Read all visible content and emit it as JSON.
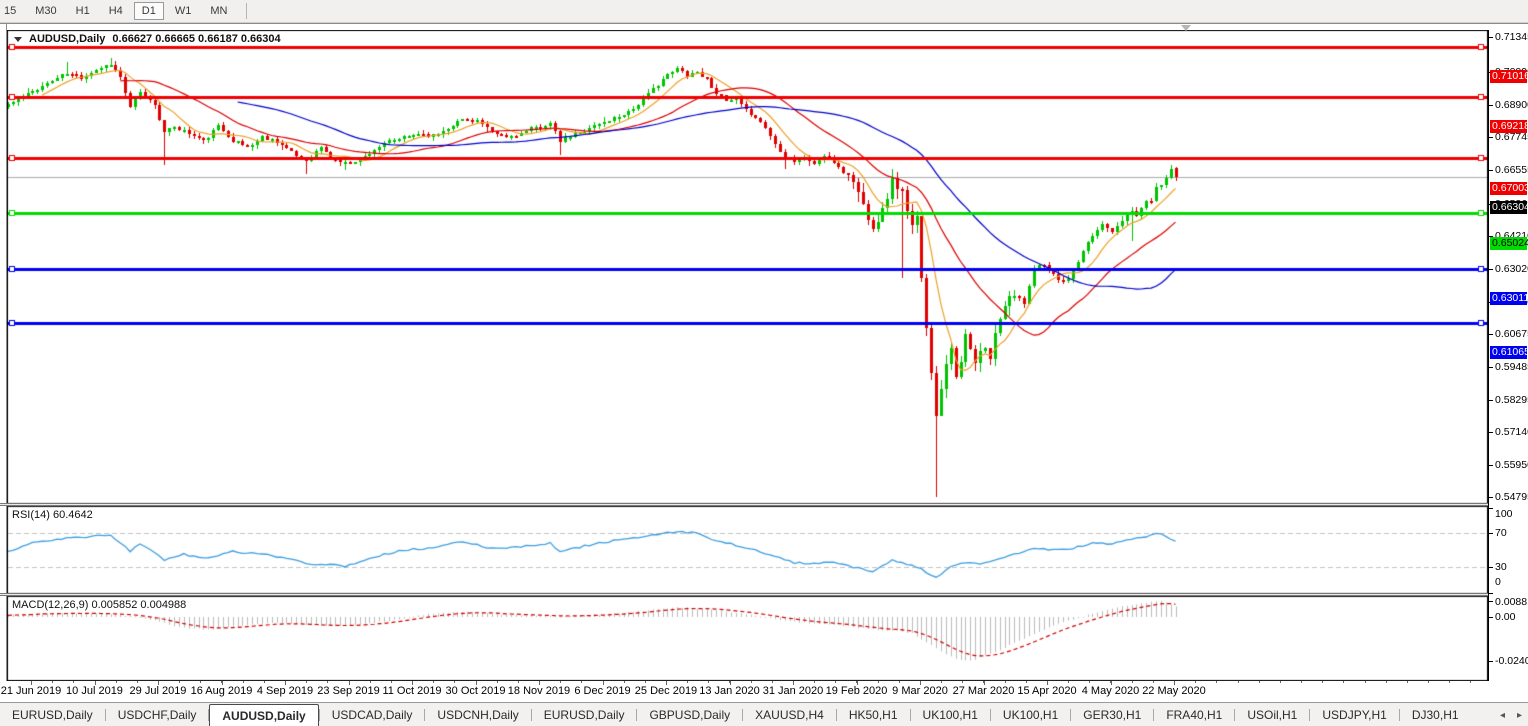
{
  "toolbar": {
    "buttons": [
      "15",
      "M30",
      "H1",
      "H4",
      "D1",
      "W1",
      "MN"
    ],
    "active": "D1"
  },
  "header": {
    "symbol": "AUDUSD,Daily",
    "ohlc": "0.66627 0.66665 0.66187 0.66304"
  },
  "indicators": {
    "rsi_label": "RSI(14) 60.4642",
    "macd_label": "MACD(12,26,9) 0.005852 0.004988"
  },
  "axis": {
    "price_ticks": [
      "0.71345",
      "0.70090",
      "0.68900",
      "0.67745",
      "0.66555",
      "0.65365",
      "0.64210",
      "0.63020",
      "0.61830",
      "0.60675",
      "0.59485",
      "0.58295",
      "0.57140",
      "0.55950",
      "0.54795"
    ],
    "rsi_ticks": [
      "100",
      "70",
      "30",
      "0"
    ],
    "macd_ticks": [
      "0.008815",
      "0.00",
      "-0.02408"
    ],
    "dates": [
      "21 Jun 2019",
      "10 Jul 2019",
      "29 Jul 2019",
      "16 Aug 2019",
      "4 Sep 2019",
      "23 Sep 2019",
      "11 Oct 2019",
      "30 Oct 2019",
      "18 Nov 2019",
      "6 Dec 2019",
      "25 Dec 2019",
      "13 Jan 2020",
      "31 Jan 2020",
      "19 Feb 2020",
      "9 Mar 2020",
      "27 Mar 2020",
      "15 Apr 2020",
      "4 May 2020",
      "22 May 2020"
    ]
  },
  "tabs": {
    "items": [
      "EURUSD,Daily",
      "USDCHF,Daily",
      "AUDUSD,Daily",
      "USDCAD,Daily",
      "USDCNH,Daily",
      "EURUSD,Daily",
      "GBPUSD,Daily",
      "XAUUSD,H4",
      "HK50,H1",
      "UK100,H1",
      "UK100,H1",
      "GER30,H1",
      "FRA40,H1",
      "USOil,H1",
      "USDJPY,H1",
      "DJ30,H1"
    ],
    "active_index": 2,
    "nav_left": "◂",
    "nav_right": "▸"
  },
  "colors": {
    "bull": "#00C400",
    "bear": "#E00000",
    "ma_fast": "#EDA128",
    "ma_mid": "#DC0000",
    "ma_slow": "#0000C8",
    "level_red": "#F00000",
    "level_green": "#00DC00",
    "level_blue": "#0000F0",
    "current_line": "#ababab",
    "current_box": "#000000",
    "rsi_line": "#3E9EE0",
    "rsi_levels": "#c4c4c4",
    "macd_bars": "#bcbcbc",
    "macd_signal": "#D00000"
  },
  "chart_data": {
    "type": "candlestick",
    "symbol": "AUDUSD",
    "timeframe": "Daily",
    "title": "AUDUSD,Daily",
    "last_ohlc": {
      "open": 0.66627,
      "high": 0.66665,
      "low": 0.66187,
      "close": 0.66304
    },
    "num_candles": 240,
    "x_dates": [
      "21 Jun 2019",
      "10 Jul 2019",
      "29 Jul 2019",
      "16 Aug 2019",
      "4 Sep 2019",
      "23 Sep 2019",
      "11 Oct 2019",
      "30 Oct 2019",
      "18 Nov 2019",
      "6 Dec 2019",
      "25 Dec 2019",
      "13 Jan 2020",
      "31 Jan 2020",
      "19 Feb 2020",
      "9 Mar 2020",
      "27 Mar 2020",
      "15 Apr 2020",
      "4 May 2020",
      "22 May 2020"
    ],
    "y_axis_range": [
      0.5457,
      0.7158
    ],
    "grid": false,
    "close_anchors": [
      [
        0,
        0.6895
      ],
      [
        3,
        0.692
      ],
      [
        6,
        0.695
      ],
      [
        9,
        0.698
      ],
      [
        12,
        0.7005
      ],
      [
        15,
        0.699
      ],
      [
        18,
        0.702
      ],
      [
        21,
        0.704
      ],
      [
        23,
        0.699
      ],
      [
        25,
        0.688
      ],
      [
        27,
        0.6935
      ],
      [
        30,
        0.6895
      ],
      [
        32,
        0.679
      ],
      [
        34,
        0.6815
      ],
      [
        37,
        0.679
      ],
      [
        40,
        0.676
      ],
      [
        43,
        0.6815
      ],
      [
        46,
        0.6765
      ],
      [
        49,
        0.674
      ],
      [
        52,
        0.6775
      ],
      [
        55,
        0.676
      ],
      [
        58,
        0.672
      ],
      [
        61,
        0.669
      ],
      [
        64,
        0.674
      ],
      [
        66,
        0.67
      ],
      [
        69,
        0.668
      ],
      [
        72,
        0.6695
      ],
      [
        75,
        0.673
      ],
      [
        78,
        0.676
      ],
      [
        81,
        0.6775
      ],
      [
        84,
        0.679
      ],
      [
        87,
        0.678
      ],
      [
        90,
        0.681
      ],
      [
        93,
        0.684
      ],
      [
        96,
        0.6835
      ],
      [
        99,
        0.679
      ],
      [
        102,
        0.6775
      ],
      [
        105,
        0.679
      ],
      [
        108,
        0.681
      ],
      [
        111,
        0.6825
      ],
      [
        113,
        0.676
      ],
      [
        116,
        0.6785
      ],
      [
        119,
        0.681
      ],
      [
        122,
        0.683
      ],
      [
        125,
        0.685
      ],
      [
        128,
        0.688
      ],
      [
        131,
        0.693
      ],
      [
        134,
        0.6985
      ],
      [
        137,
        0.702
      ],
      [
        139,
        0.7
      ],
      [
        141,
        0.701
      ],
      [
        143,
        0.6985
      ],
      [
        145,
        0.6935
      ],
      [
        147,
        0.6905
      ],
      [
        149,
        0.691
      ],
      [
        151,
        0.687
      ],
      [
        153,
        0.685
      ],
      [
        155,
        0.681
      ],
      [
        157,
        0.675
      ],
      [
        159,
        0.671
      ],
      [
        161,
        0.669
      ],
      [
        163,
        0.67
      ],
      [
        165,
        0.668
      ],
      [
        167,
        0.671
      ],
      [
        169,
        0.6685
      ],
      [
        171,
        0.665
      ],
      [
        173,
        0.662
      ],
      [
        175,
        0.653
      ],
      [
        177,
        0.6455
      ],
      [
        179,
        0.651
      ],
      [
        181,
        0.662
      ],
      [
        183,
        0.658
      ],
      [
        184,
        0.65
      ],
      [
        185,
        0.645
      ],
      [
        186,
        0.648
      ],
      [
        187,
        0.628
      ],
      [
        188,
        0.61
      ],
      [
        189,
        0.592
      ],
      [
        190,
        0.578
      ],
      [
        191,
        0.588
      ],
      [
        192,
        0.5965
      ],
      [
        193,
        0.603
      ],
      [
        194,
        0.59
      ],
      [
        195,
        0.596
      ],
      [
        196,
        0.606
      ],
      [
        197,
        0.601
      ],
      [
        198,
        0.5955
      ],
      [
        199,
        0.6
      ],
      [
        200,
        0.602
      ],
      [
        201,
        0.597
      ],
      [
        202,
        0.608
      ],
      [
        204,
        0.618
      ],
      [
        206,
        0.622
      ],
      [
        208,
        0.617
      ],
      [
        210,
        0.63
      ],
      [
        212,
        0.632
      ],
      [
        214,
        0.628
      ],
      [
        216,
        0.625
      ],
      [
        218,
        0.629
      ],
      [
        220,
        0.636
      ],
      [
        222,
        0.642
      ],
      [
        224,
        0.6465
      ],
      [
        226,
        0.644
      ],
      [
        228,
        0.648
      ],
      [
        230,
        0.651
      ],
      [
        231,
        0.649
      ],
      [
        232,
        0.6525
      ],
      [
        233,
        0.654
      ],
      [
        234,
        0.655
      ],
      [
        235,
        0.659
      ],
      [
        236,
        0.6605
      ],
      [
        237,
        0.6635
      ],
      [
        238,
        0.666
      ],
      [
        239,
        0.66304
      ]
    ],
    "special_wicks": [
      {
        "i": 12,
        "high": 0.7046
      },
      {
        "i": 21,
        "high": 0.7062
      },
      {
        "i": 32,
        "low": 0.6675
      },
      {
        "i": 61,
        "low": 0.6642
      },
      {
        "i": 69,
        "low": 0.6656
      },
      {
        "i": 113,
        "low": 0.6712
      },
      {
        "i": 137,
        "high": 0.7033
      },
      {
        "i": 159,
        "low": 0.6662
      },
      {
        "i": 177,
        "low": 0.6434
      },
      {
        "i": 183,
        "low": 0.627
      },
      {
        "i": 190,
        "low": 0.548
      },
      {
        "i": 230,
        "low": 0.6403
      }
    ],
    "moving_averages": [
      {
        "name": "fast",
        "period": 8,
        "color_key": "ma_fast"
      },
      {
        "name": "mid",
        "period": 24,
        "color_key": "ma_mid"
      },
      {
        "name": "slow",
        "period": 48,
        "color_key": "ma_slow"
      }
    ],
    "horizontal_levels": [
      {
        "price": 0.71016,
        "label": "0.71016",
        "color_key": "level_red",
        "text_color": "#ffffff"
      },
      {
        "price": 0.69218,
        "label": "0.69218",
        "color_key": "level_red",
        "text_color": "#ffffff"
      },
      {
        "price": 0.67003,
        "label": "0.67003",
        "color_key": "level_red",
        "text_color": "#ffffff"
      },
      {
        "price": 0.65024,
        "label": "0.65024",
        "color_key": "level_green",
        "text_color": "#000000"
      },
      {
        "price": 0.63011,
        "label": "0.63011",
        "color_key": "level_blue",
        "text_color": "#ffffff"
      },
      {
        "price": 0.61065,
        "label": "0.61065",
        "color_key": "level_blue",
        "text_color": "#ffffff"
      }
    ],
    "current_price": {
      "value": 0.66304,
      "label": "0.66304"
    },
    "rsi": {
      "type": "line",
      "label": "RSI(14) 60.4642",
      "period": 14,
      "last_value": 60.4642,
      "levels": [
        70,
        30
      ],
      "scale": [
        0,
        100
      ],
      "anchors": [
        [
          0,
          48
        ],
        [
          6,
          60
        ],
        [
          12,
          64
        ],
        [
          18,
          66
        ],
        [
          21,
          68
        ],
        [
          25,
          49
        ],
        [
          27,
          58
        ],
        [
          32,
          38
        ],
        [
          36,
          45
        ],
        [
          40,
          40
        ],
        [
          46,
          48
        ],
        [
          52,
          45
        ],
        [
          58,
          40
        ],
        [
          61,
          34
        ],
        [
          66,
          33
        ],
        [
          69,
          31
        ],
        [
          75,
          42
        ],
        [
          81,
          50
        ],
        [
          87,
          52
        ],
        [
          93,
          60
        ],
        [
          99,
          52
        ],
        [
          105,
          54
        ],
        [
          111,
          58
        ],
        [
          113,
          48
        ],
        [
          119,
          56
        ],
        [
          125,
          62
        ],
        [
          131,
          66
        ],
        [
          137,
          72
        ],
        [
          141,
          70
        ],
        [
          145,
          60
        ],
        [
          149,
          56
        ],
        [
          153,
          50
        ],
        [
          157,
          42
        ],
        [
          161,
          35
        ],
        [
          165,
          34
        ],
        [
          169,
          35
        ],
        [
          173,
          30
        ],
        [
          177,
          24
        ],
        [
          181,
          38
        ],
        [
          183,
          35
        ],
        [
          186,
          30
        ],
        [
          188,
          24
        ],
        [
          190,
          18
        ],
        [
          193,
          30
        ],
        [
          196,
          35
        ],
        [
          199,
          33
        ],
        [
          202,
          38
        ],
        [
          206,
          45
        ],
        [
          210,
          52
        ],
        [
          214,
          50
        ],
        [
          218,
          52
        ],
        [
          222,
          58
        ],
        [
          226,
          57
        ],
        [
          230,
          63
        ],
        [
          233,
          66
        ],
        [
          235,
          70
        ],
        [
          237,
          66
        ],
        [
          239,
          60.46
        ]
      ]
    },
    "macd": {
      "type": "histogram+signal",
      "label": "MACD(12,26,9) 0.005852 0.004988",
      "params": [
        12,
        26,
        9
      ],
      "last_main": 0.005852,
      "last_signal": 0.004988,
      "scale_max": 0.008815,
      "scale_min": -0.02408,
      "anchors": [
        [
          0,
          0.001
        ],
        [
          6,
          0.002
        ],
        [
          12,
          0.0022
        ],
        [
          18,
          0.002
        ],
        [
          22,
          0.0012
        ],
        [
          26,
          0.0002
        ],
        [
          30,
          -0.0018
        ],
        [
          34,
          -0.005
        ],
        [
          38,
          -0.0065
        ],
        [
          42,
          -0.0068
        ],
        [
          46,
          -0.0055
        ],
        [
          50,
          -0.004
        ],
        [
          54,
          -0.003
        ],
        [
          58,
          -0.0035
        ],
        [
          62,
          -0.0045
        ],
        [
          66,
          -0.005
        ],
        [
          70,
          -0.0048
        ],
        [
          74,
          -0.0035
        ],
        [
          78,
          -0.002
        ],
        [
          82,
          -0.0002
        ],
        [
          86,
          0.0015
        ],
        [
          90,
          0.0024
        ],
        [
          94,
          0.0028
        ],
        [
          98,
          0.0022
        ],
        [
          102,
          0.001
        ],
        [
          106,
          0.0008
        ],
        [
          110,
          0.0006
        ],
        [
          114,
          0.0004
        ],
        [
          118,
          0.001
        ],
        [
          122,
          0.0016
        ],
        [
          126,
          0.0024
        ],
        [
          130,
          0.0034
        ],
        [
          134,
          0.0046
        ],
        [
          138,
          0.0052
        ],
        [
          142,
          0.0046
        ],
        [
          146,
          0.0034
        ],
        [
          150,
          0.002
        ],
        [
          154,
          0.0004
        ],
        [
          158,
          -0.0015
        ],
        [
          162,
          -0.003
        ],
        [
          166,
          -0.0038
        ],
        [
          170,
          -0.0045
        ],
        [
          174,
          -0.006
        ],
        [
          178,
          -0.0072
        ],
        [
          182,
          -0.0075
        ],
        [
          185,
          -0.009
        ],
        [
          188,
          -0.014
        ],
        [
          191,
          -0.019
        ],
        [
          194,
          -0.0227
        ],
        [
          196,
          -0.0241
        ],
        [
          198,
          -0.0232
        ],
        [
          201,
          -0.0205
        ],
        [
          204,
          -0.017
        ],
        [
          207,
          -0.013
        ],
        [
          210,
          -0.0095
        ],
        [
          213,
          -0.006
        ],
        [
          216,
          -0.003
        ],
        [
          219,
          -0.0005
        ],
        [
          222,
          0.002
        ],
        [
          225,
          0.004
        ],
        [
          228,
          0.0058
        ],
        [
          231,
          0.0072
        ],
        [
          234,
          0.0082
        ],
        [
          236,
          0.0088
        ],
        [
          238,
          0.0072
        ],
        [
          239,
          0.005852
        ]
      ]
    }
  }
}
